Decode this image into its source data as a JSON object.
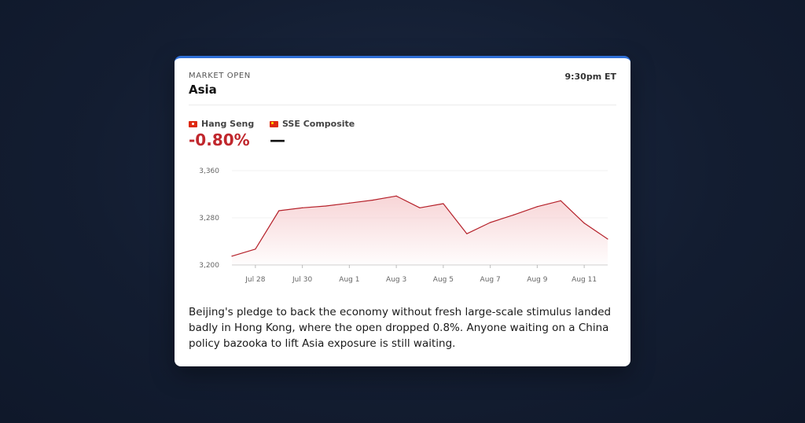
{
  "header": {
    "kicker": "MARKET OPEN",
    "title": "Asia",
    "time": "9:30pm ET"
  },
  "indices": [
    {
      "name": "Hang Seng",
      "value": "-0.80%",
      "flag_icon": "hong-kong-flag-icon"
    },
    {
      "name": "SSE Composite",
      "value": "—",
      "flag_icon": "china-flag-icon"
    }
  ],
  "chart_data": {
    "type": "area",
    "x": [
      "Jul 27",
      "Jul 28",
      "Jul 29",
      "Jul 30",
      "Jul 31",
      "Aug 1",
      "Aug 2",
      "Aug 3",
      "Aug 4",
      "Aug 5",
      "Aug 6",
      "Aug 7",
      "Aug 8",
      "Aug 9",
      "Aug 10",
      "Aug 11",
      "Aug 12"
    ],
    "values": [
      3215,
      3227,
      3292,
      3297,
      3300,
      3305,
      3310,
      3317,
      3297,
      3304,
      3253,
      3272,
      3285,
      3299,
      3309,
      3271,
      3244
    ],
    "x_ticks": [
      "Jul 28",
      "Jul 30",
      "Aug 1",
      "Aug 3",
      "Aug 5",
      "Aug 7",
      "Aug 9",
      "Aug 11"
    ],
    "y_ticks": [
      "3,360",
      "3,280",
      "3,200"
    ],
    "ylim": [
      3200,
      3360
    ],
    "line_color": "#b5212a",
    "fill_color": "#f7d2d4",
    "grid": true
  },
  "commentary": "Beijing's pledge to back the economy without fresh large-scale stimulus landed badly in Hong Kong, where the open dropped 0.8%. Anyone waiting on a China policy bazooka to lift Asia exposure is still waiting."
}
